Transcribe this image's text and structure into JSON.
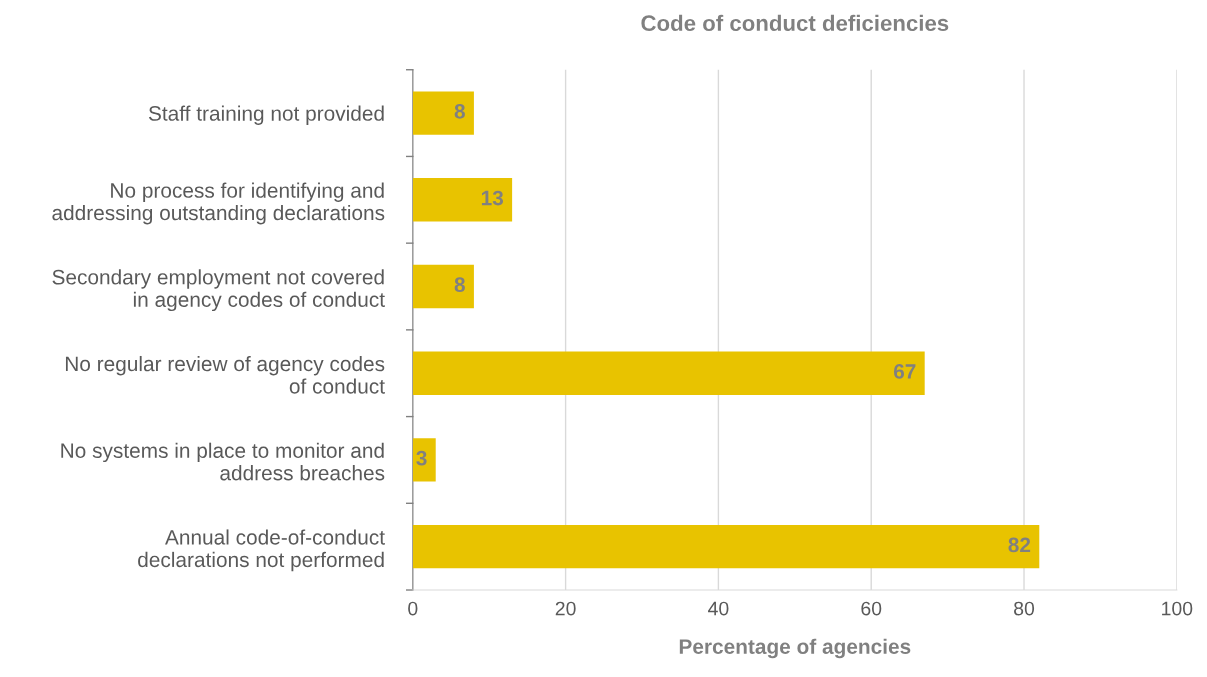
{
  "chart_data": {
    "type": "bar",
    "orientation": "horizontal",
    "title": "Code of conduct deficiencies",
    "xlabel": "Percentage of agencies",
    "categories": [
      "Staff training not provided",
      "No process for identifying and\naddressing outstanding declarations",
      "Secondary employment not covered\nin agency codes of conduct",
      "No regular review of agency codes\nof conduct",
      "No systems in place to monitor and\naddress breaches",
      "Annual code-of-conduct\ndeclarations not performed"
    ],
    "values": [
      8,
      13,
      8,
      67,
      3,
      82
    ],
    "color": "#e8c300",
    "xlim": [
      0,
      100
    ],
    "xticks": [
      0,
      20,
      40,
      60,
      80,
      100
    ],
    "grid": "x",
    "data_labels": true,
    "legend": false
  }
}
